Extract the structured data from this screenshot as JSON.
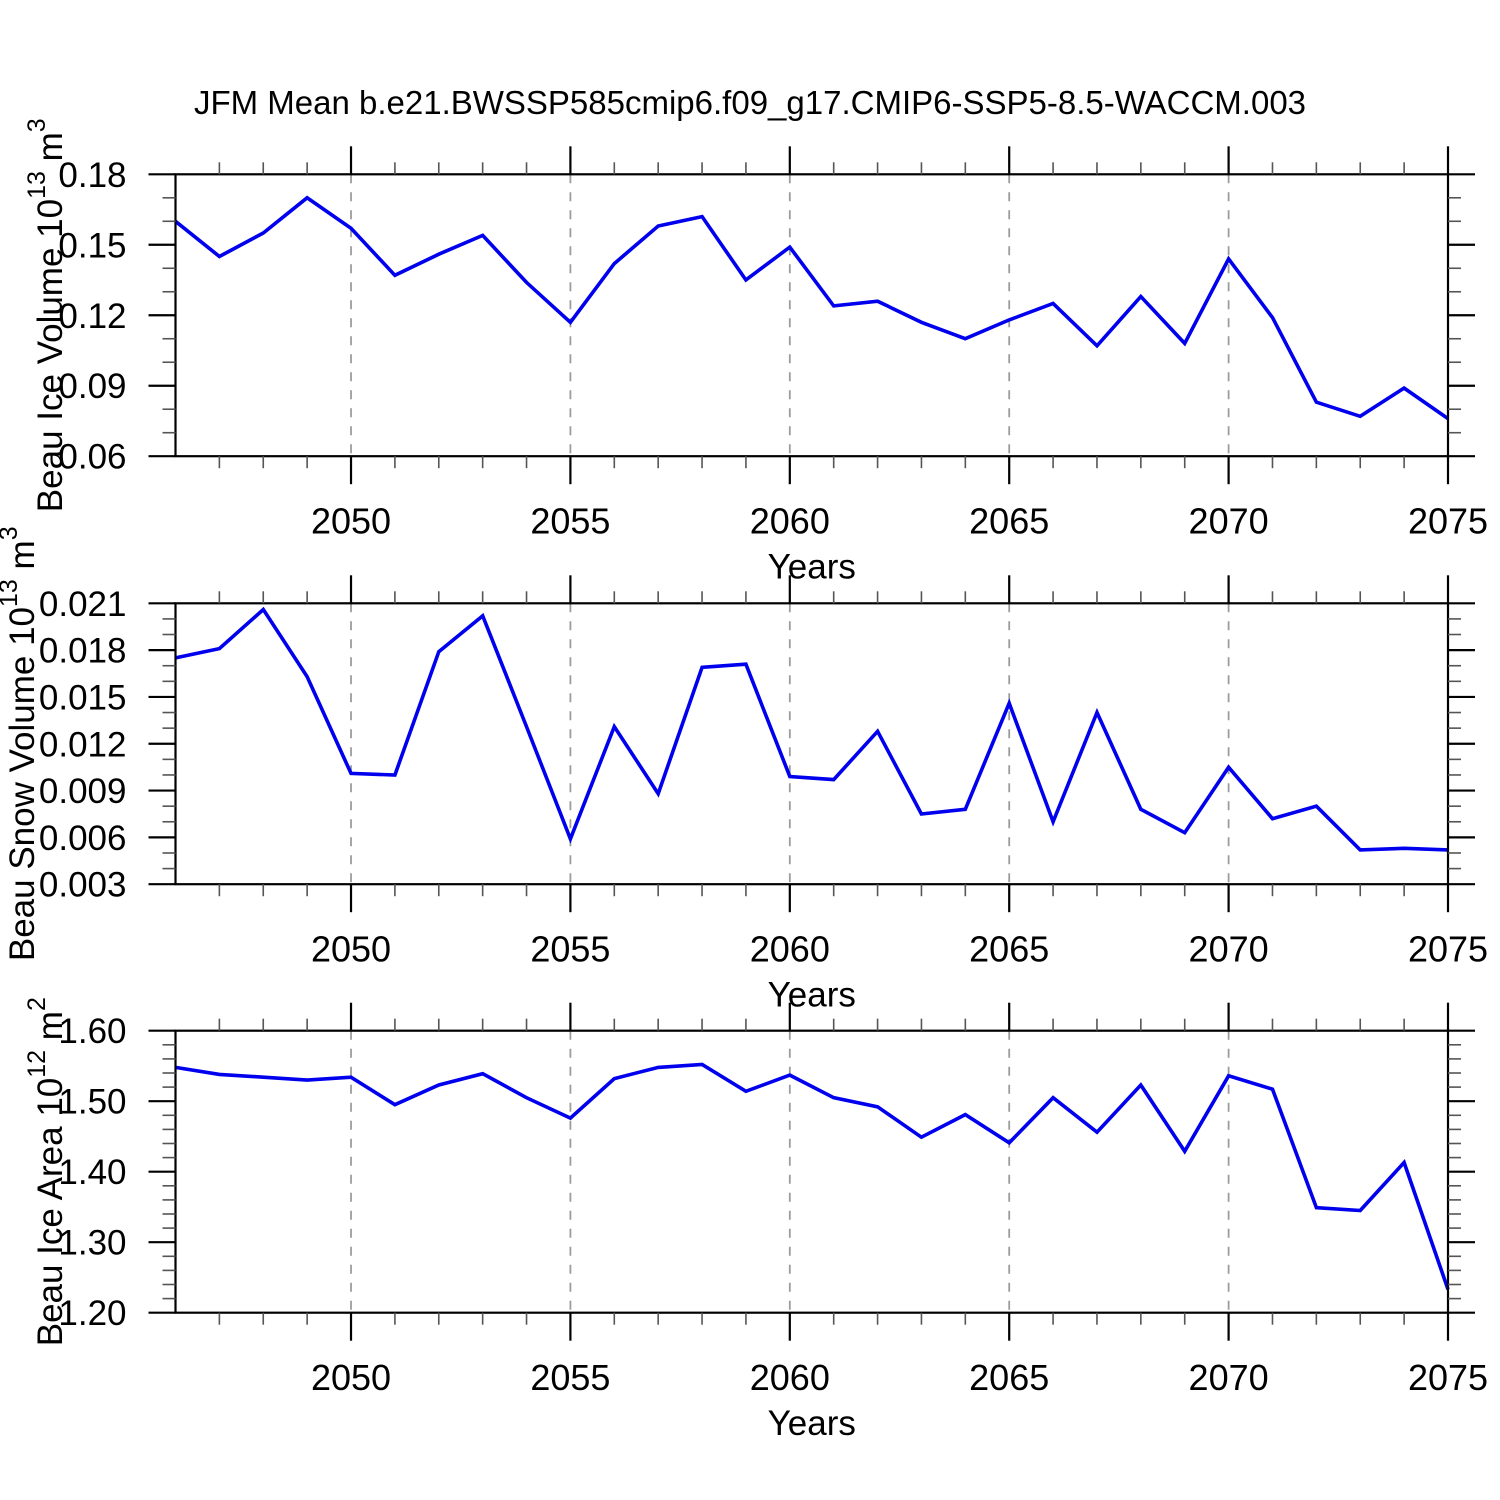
{
  "title": "JFM Mean b.e21.BWSSP585cmip6.f09_g17.CMIP6-SSP5-8.5-WACCM.003",
  "colors": {
    "line": "#0000ee",
    "grid": "#9c9c9c",
    "axis": "#000000",
    "minor_tick": "#555555",
    "text": "#000000",
    "background": "#ffffff"
  },
  "chart_data": {
    "type": "line",
    "layout_hint": "three stacked panels, shared x axis, vertical dashed gridlines at labeled x ticks, box frame with outward ticks on all four sides, no legend",
    "x": [
      2046,
      2047,
      2048,
      2049,
      2050,
      2051,
      2052,
      2053,
      2054,
      2055,
      2056,
      2057,
      2058,
      2059,
      2060,
      2061,
      2062,
      2063,
      2064,
      2065,
      2066,
      2067,
      2068,
      2069,
      2070,
      2071,
      2072,
      2073,
      2074,
      2075
    ],
    "xlabel": "Years",
    "xlim": [
      2046,
      2075
    ],
    "xticks_labeled": [
      2050,
      2055,
      2060,
      2065,
      2070,
      2075
    ],
    "xtick_minor_step": 1,
    "grid_x": [
      2050,
      2055,
      2060,
      2065,
      2070
    ],
    "panels": [
      {
        "name": "beau-ice-volume",
        "ylabel_text": "Beau Ice Volume 10¹³ m³",
        "ylabel_parts": [
          {
            "t": "Beau Ice Volume 10",
            "sup": false
          },
          {
            "t": "13",
            "sup": true
          },
          {
            "t": " m",
            "sup": false
          },
          {
            "t": "3",
            "sup": true
          }
        ],
        "ylim": [
          0.06,
          0.18
        ],
        "yticks": [
          {
            "v": 0.06,
            "label": "0.06"
          },
          {
            "v": 0.09,
            "label": "0.09"
          },
          {
            "v": 0.12,
            "label": "0.12"
          },
          {
            "v": 0.15,
            "label": "0.15"
          },
          {
            "v": 0.18,
            "label": "0.18"
          }
        ],
        "ytick_minor_step": 0.01,
        "values": [
          0.16,
          0.145,
          0.155,
          0.17,
          0.157,
          0.137,
          0.146,
          0.154,
          0.134,
          0.117,
          0.142,
          0.158,
          0.162,
          0.135,
          0.149,
          0.124,
          0.126,
          0.117,
          0.11,
          0.118,
          0.125,
          0.107,
          0.128,
          0.108,
          0.144,
          0.119,
          0.083,
          0.077,
          0.089,
          0.076
        ]
      },
      {
        "name": "beau-snow-volume",
        "ylabel_text": "Beau Snow Volume 10¹³ m³",
        "ylabel_parts": [
          {
            "t": "Beau Snow Volume 10",
            "sup": false
          },
          {
            "t": "13",
            "sup": true
          },
          {
            "t": " m",
            "sup": false
          },
          {
            "t": "3",
            "sup": true
          }
        ],
        "ylim": [
          0.003,
          0.021
        ],
        "yticks": [
          {
            "v": 0.003,
            "label": "0.003"
          },
          {
            "v": 0.006,
            "label": "0.006"
          },
          {
            "v": 0.009,
            "label": "0.009"
          },
          {
            "v": 0.012,
            "label": "0.012"
          },
          {
            "v": 0.015,
            "label": "0.015"
          },
          {
            "v": 0.018,
            "label": "0.018"
          },
          {
            "v": 0.021,
            "label": "0.021"
          }
        ],
        "ytick_minor_step": 0.001,
        "values": [
          0.0175,
          0.0181,
          0.0206,
          0.0163,
          0.0101,
          0.01,
          0.0179,
          0.0202,
          0.0131,
          0.0059,
          0.0131,
          0.0088,
          0.0169,
          0.0171,
          0.0099,
          0.0097,
          0.0128,
          0.0075,
          0.0078,
          0.0146,
          0.007,
          0.014,
          0.0078,
          0.0063,
          0.0105,
          0.0072,
          0.008,
          0.0052,
          0.0053,
          0.0052
        ]
      },
      {
        "name": "beau-ice-area",
        "ylabel_text": "Beau Ice Area 10¹² m²",
        "ylabel_parts": [
          {
            "t": "Beau Ice Area 10",
            "sup": false
          },
          {
            "t": "12",
            "sup": true
          },
          {
            "t": " m",
            "sup": false
          },
          {
            "t": "2",
            "sup": true
          }
        ],
        "ylim": [
          1.2,
          1.6
        ],
        "yticks": [
          {
            "v": 1.2,
            "label": "1.20"
          },
          {
            "v": 1.3,
            "label": "1.30"
          },
          {
            "v": 1.4,
            "label": "1.40"
          },
          {
            "v": 1.5,
            "label": "1.50"
          },
          {
            "v": 1.6,
            "label": "1.60"
          }
        ],
        "ytick_minor_step": 0.02,
        "values": [
          1.548,
          1.538,
          1.534,
          1.53,
          1.534,
          1.495,
          1.523,
          1.539,
          1.505,
          1.476,
          1.532,
          1.548,
          1.552,
          1.514,
          1.537,
          1.505,
          1.492,
          1.449,
          1.481,
          1.441,
          1.505,
          1.456,
          1.523,
          1.429,
          1.536,
          1.517,
          1.349,
          1.345,
          1.413,
          1.233
        ]
      }
    ]
  }
}
